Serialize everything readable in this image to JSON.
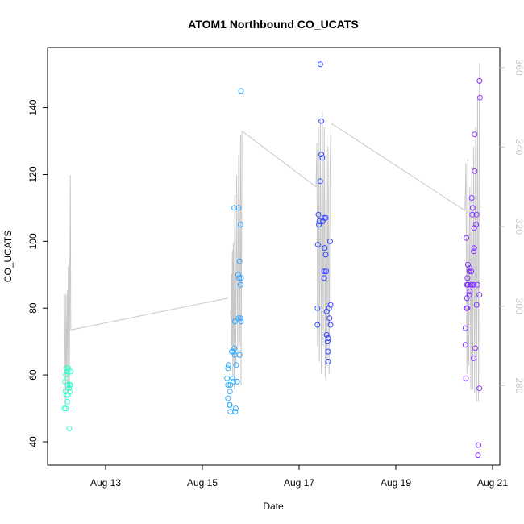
{
  "chart_data": {
    "type": "scatter",
    "title": "ATOM1 Northbound CO_UCATS",
    "xlabel": "Date",
    "ylabel": "CO_UCATS",
    "x_ticks": [
      {
        "label": "Aug 13",
        "day": 13
      },
      {
        "label": "Aug 15",
        "day": 15
      },
      {
        "label": "Aug 17",
        "day": 17
      },
      {
        "label": "Aug 19",
        "day": 19
      },
      {
        "label": "Aug 21",
        "day": 21
      }
    ],
    "xlim_days": [
      11.8,
      21.15
    ],
    "ylim": [
      33,
      158
    ],
    "y_ticks": [
      40,
      60,
      80,
      100,
      120,
      140
    ],
    "right_axis": {
      "ylim": [
        260,
        365
      ],
      "ticks": [
        280,
        300,
        320,
        340,
        360
      ],
      "color": "#c8c8c8"
    },
    "colors": {
      "marker_cmap": [
        "#33ffcc",
        "#33ccff",
        "#3333ff",
        "#8833ff"
      ],
      "line": "#c8c8c8",
      "frame": "#000000"
    },
    "points": [
      {
        "x": 12.25,
        "y": 44
      },
      {
        "x": 12.15,
        "y": 50
      },
      {
        "x": 12.18,
        "y": 50
      },
      {
        "x": 12.21,
        "y": 52
      },
      {
        "x": 12.19,
        "y": 54
      },
      {
        "x": 12.22,
        "y": 54
      },
      {
        "x": 12.26,
        "y": 55
      },
      {
        "x": 12.17,
        "y": 55
      },
      {
        "x": 12.24,
        "y": 56
      },
      {
        "x": 12.27,
        "y": 57
      },
      {
        "x": 12.22,
        "y": 57
      },
      {
        "x": 12.26,
        "y": 57
      },
      {
        "x": 12.16,
        "y": 58
      },
      {
        "x": 12.18,
        "y": 60
      },
      {
        "x": 12.21,
        "y": 61
      },
      {
        "x": 12.28,
        "y": 61
      },
      {
        "x": 12.19,
        "y": 62
      },
      {
        "x": 12.23,
        "y": 62
      },
      {
        "x": 15.58,
        "y": 49
      },
      {
        "x": 15.68,
        "y": 49
      },
      {
        "x": 15.69,
        "y": 50
      },
      {
        "x": 15.56,
        "y": 51
      },
      {
        "x": 15.57,
        "y": 51
      },
      {
        "x": 15.53,
        "y": 53
      },
      {
        "x": 15.57,
        "y": 55
      },
      {
        "x": 15.53,
        "y": 57
      },
      {
        "x": 15.58,
        "y": 57
      },
      {
        "x": 15.72,
        "y": 58
      },
      {
        "x": 15.64,
        "y": 58
      },
      {
        "x": 15.63,
        "y": 59
      },
      {
        "x": 15.51,
        "y": 59
      },
      {
        "x": 15.53,
        "y": 62
      },
      {
        "x": 15.54,
        "y": 63
      },
      {
        "x": 15.7,
        "y": 63
      },
      {
        "x": 15.67,
        "y": 66
      },
      {
        "x": 15.77,
        "y": 66
      },
      {
        "x": 15.61,
        "y": 67
      },
      {
        "x": 15.64,
        "y": 67
      },
      {
        "x": 15.66,
        "y": 68
      },
      {
        "x": 15.67,
        "y": 76
      },
      {
        "x": 15.8,
        "y": 76
      },
      {
        "x": 15.75,
        "y": 77
      },
      {
        "x": 15.79,
        "y": 77
      },
      {
        "x": 15.79,
        "y": 87
      },
      {
        "x": 15.8,
        "y": 89
      },
      {
        "x": 15.76,
        "y": 89
      },
      {
        "x": 15.74,
        "y": 90
      },
      {
        "x": 15.77,
        "y": 94
      },
      {
        "x": 15.79,
        "y": 105
      },
      {
        "x": 15.66,
        "y": 110
      },
      {
        "x": 15.75,
        "y": 110
      },
      {
        "x": 15.8,
        "y": 145
      },
      {
        "x": 17.6,
        "y": 64
      },
      {
        "x": 17.6,
        "y": 67
      },
      {
        "x": 17.59,
        "y": 70
      },
      {
        "x": 17.6,
        "y": 71
      },
      {
        "x": 17.57,
        "y": 72
      },
      {
        "x": 17.65,
        "y": 75
      },
      {
        "x": 17.38,
        "y": 75
      },
      {
        "x": 17.63,
        "y": 77
      },
      {
        "x": 17.57,
        "y": 79
      },
      {
        "x": 17.38,
        "y": 80
      },
      {
        "x": 17.62,
        "y": 80
      },
      {
        "x": 17.65,
        "y": 81
      },
      {
        "x": 17.52,
        "y": 89
      },
      {
        "x": 17.52,
        "y": 91
      },
      {
        "x": 17.56,
        "y": 91
      },
      {
        "x": 17.55,
        "y": 96
      },
      {
        "x": 17.53,
        "y": 98
      },
      {
        "x": 17.39,
        "y": 99
      },
      {
        "x": 17.64,
        "y": 100
      },
      {
        "x": 17.41,
        "y": 105
      },
      {
        "x": 17.42,
        "y": 106
      },
      {
        "x": 17.49,
        "y": 106
      },
      {
        "x": 17.55,
        "y": 107
      },
      {
        "x": 17.52,
        "y": 107
      },
      {
        "x": 17.4,
        "y": 108
      },
      {
        "x": 17.44,
        "y": 118
      },
      {
        "x": 17.48,
        "y": 125
      },
      {
        "x": 17.46,
        "y": 126
      },
      {
        "x": 17.46,
        "y": 136
      },
      {
        "x": 17.44,
        "y": 153
      },
      {
        "x": 20.7,
        "y": 36
      },
      {
        "x": 20.71,
        "y": 39
      },
      {
        "x": 20.73,
        "y": 56
      },
      {
        "x": 20.45,
        "y": 59
      },
      {
        "x": 20.61,
        "y": 65
      },
      {
        "x": 20.44,
        "y": 69
      },
      {
        "x": 20.64,
        "y": 68
      },
      {
        "x": 20.44,
        "y": 74
      },
      {
        "x": 20.46,
        "y": 80
      },
      {
        "x": 20.48,
        "y": 80
      },
      {
        "x": 20.67,
        "y": 81
      },
      {
        "x": 20.47,
        "y": 83
      },
      {
        "x": 20.52,
        "y": 84
      },
      {
        "x": 20.73,
        "y": 84
      },
      {
        "x": 20.53,
        "y": 85
      },
      {
        "x": 20.47,
        "y": 87
      },
      {
        "x": 20.49,
        "y": 87
      },
      {
        "x": 20.55,
        "y": 87
      },
      {
        "x": 20.58,
        "y": 87
      },
      {
        "x": 20.61,
        "y": 87
      },
      {
        "x": 20.69,
        "y": 87
      },
      {
        "x": 20.48,
        "y": 89
      },
      {
        "x": 20.52,
        "y": 91
      },
      {
        "x": 20.53,
        "y": 92
      },
      {
        "x": 20.56,
        "y": 91
      },
      {
        "x": 20.49,
        "y": 93
      },
      {
        "x": 20.61,
        "y": 97
      },
      {
        "x": 20.62,
        "y": 98
      },
      {
        "x": 20.46,
        "y": 101
      },
      {
        "x": 20.62,
        "y": 104
      },
      {
        "x": 20.66,
        "y": 105
      },
      {
        "x": 20.58,
        "y": 108
      },
      {
        "x": 20.67,
        "y": 108
      },
      {
        "x": 20.59,
        "y": 110
      },
      {
        "x": 20.57,
        "y": 113
      },
      {
        "x": 20.63,
        "y": 121
      },
      {
        "x": 20.63,
        "y": 132
      },
      {
        "x": 20.74,
        "y": 143
      },
      {
        "x": 20.73,
        "y": 148
      }
    ],
    "line_right_axis": [
      [
        12.15,
        303
      ],
      [
        12.17,
        275
      ],
      [
        12.18,
        303
      ],
      [
        12.19,
        282
      ],
      [
        12.21,
        304
      ],
      [
        12.22,
        278
      ],
      [
        12.23,
        310
      ],
      [
        12.25,
        279
      ],
      [
        12.27,
        333
      ],
      [
        12.28,
        294
      ],
      [
        15.58,
        299
      ],
      [
        15.6,
        296
      ],
      [
        15.6,
        308
      ],
      [
        15.61,
        290
      ],
      [
        15.62,
        314
      ],
      [
        15.63,
        282
      ],
      [
        15.64,
        316
      ],
      [
        15.66,
        279
      ],
      [
        15.67,
        328
      ],
      [
        15.69,
        285
      ],
      [
        15.71,
        333
      ],
      [
        15.73,
        287
      ],
      [
        15.75,
        338
      ],
      [
        15.77,
        290
      ],
      [
        15.79,
        343
      ],
      [
        15.8,
        280
      ],
      [
        15.82,
        344
      ],
      [
        17.35,
        330
      ],
      [
        17.37,
        341
      ],
      [
        17.38,
        290
      ],
      [
        17.4,
        345
      ],
      [
        17.42,
        286
      ],
      [
        17.44,
        347
      ],
      [
        17.46,
        283
      ],
      [
        17.48,
        349
      ],
      [
        17.5,
        290
      ],
      [
        17.52,
        345
      ],
      [
        17.54,
        282
      ],
      [
        17.56,
        343
      ],
      [
        17.58,
        285
      ],
      [
        17.6,
        340
      ],
      [
        17.62,
        283
      ],
      [
        17.64,
        335
      ],
      [
        17.66,
        346
      ],
      [
        20.43,
        324
      ],
      [
        20.45,
        336
      ],
      [
        20.47,
        283
      ],
      [
        20.49,
        337
      ],
      [
        20.51,
        285
      ],
      [
        20.53,
        330
      ],
      [
        20.55,
        279
      ],
      [
        20.57,
        335
      ],
      [
        20.59,
        279
      ],
      [
        20.61,
        340
      ],
      [
        20.63,
        278
      ],
      [
        20.65,
        345
      ],
      [
        20.67,
        276
      ],
      [
        20.69,
        352
      ],
      [
        20.71,
        276
      ],
      [
        20.73,
        361
      ]
    ],
    "line_right_axis_connectors": [
      [
        12.28,
        294
      ],
      [
        15.53,
        302
      ],
      [
        15.82,
        344
      ],
      [
        17.35,
        330
      ],
      [
        17.66,
        346
      ],
      [
        20.43,
        324
      ]
    ]
  }
}
